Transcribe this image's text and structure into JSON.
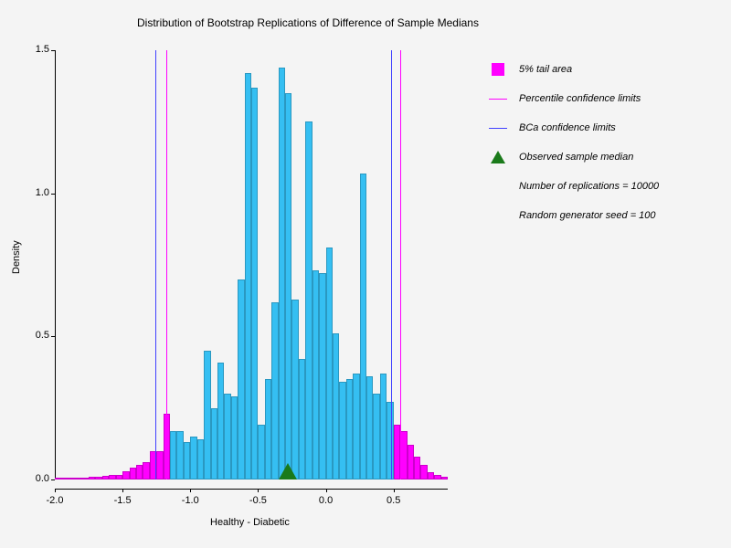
{
  "chart": {
    "type": "histogram",
    "title": "Distribution of Bootstrap Replications of Difference of Sample Medians",
    "title_fontsize": 12,
    "xlabel": "Healthy - Diabetic",
    "ylabel": "Density",
    "label_fontsize": 11,
    "background_color": "#f4f4f4",
    "xlim": [
      -2.0,
      0.9
    ],
    "ylim": [
      0.0,
      1.5
    ],
    "xticks": [
      -2.0,
      -1.5,
      -1.0,
      -0.5,
      0.0,
      0.5
    ],
    "yticks": [
      0.0,
      0.5,
      1.0,
      1.5
    ],
    "bar_width_x": 0.05,
    "main_color": "#35bff2",
    "tail_color": "#ff00ff",
    "percentile_line_color": "#ff00ff",
    "bca_line_color": "#4040ff",
    "triangle_color": "#1a7a1a",
    "bins_x": [
      -2.0,
      -1.95,
      -1.9,
      -1.85,
      -1.8,
      -1.75,
      -1.7,
      -1.65,
      -1.6,
      -1.55,
      -1.5,
      -1.45,
      -1.4,
      -1.35,
      -1.3,
      -1.25,
      -1.2,
      -1.15,
      -1.1,
      -1.05,
      -1.0,
      -0.95,
      -0.9,
      -0.85,
      -0.8,
      -0.75,
      -0.7,
      -0.65,
      -0.6,
      -0.55,
      -0.5,
      -0.45,
      -0.4,
      -0.35,
      -0.3,
      -0.25,
      -0.2,
      -0.15,
      -0.1,
      -0.05,
      0.0,
      0.05,
      0.1,
      0.15,
      0.2,
      0.25,
      0.3,
      0.35,
      0.4,
      0.45,
      0.5,
      0.55,
      0.6,
      0.65,
      0.7,
      0.75,
      0.8,
      0.85
    ],
    "bins_y": [
      0.005,
      0.005,
      0.008,
      0.006,
      0.008,
      0.01,
      0.01,
      0.012,
      0.015,
      0.015,
      0.03,
      0.04,
      0.05,
      0.06,
      0.1,
      0.1,
      0.23,
      0.17,
      0.17,
      0.13,
      0.15,
      0.14,
      0.45,
      0.25,
      0.41,
      0.3,
      0.29,
      0.7,
      1.42,
      1.37,
      0.19,
      0.35,
      0.62,
      1.44,
      1.35,
      0.63,
      0.42,
      1.25,
      0.73,
      0.72,
      0.81,
      0.51,
      0.34,
      0.35,
      0.37,
      1.07,
      0.36,
      0.3,
      0.37,
      0.27,
      0.19,
      0.17,
      0.12,
      0.08,
      0.05,
      0.025,
      0.015,
      0.01
    ],
    "tail_indices_left": [
      0,
      1,
      2,
      3,
      4,
      5,
      6,
      7,
      8,
      9,
      10,
      11,
      12,
      13,
      14,
      15,
      16
    ],
    "tail_indices_right": [
      50,
      51,
      52,
      53,
      54,
      55,
      56,
      57
    ],
    "percentile_limits": [
      -1.18,
      0.55
    ],
    "bca_limits": [
      -1.26,
      0.48
    ],
    "observed_median": -0.28
  },
  "legend": {
    "tail_label": "5% tail area",
    "percentile_label": "Percentile confidence limits",
    "bca_label": "BCa confidence limits",
    "observed_label": "Observed sample median",
    "replications_label": "Number of replications = 10000",
    "seed_label": "Random generator seed = 100"
  }
}
